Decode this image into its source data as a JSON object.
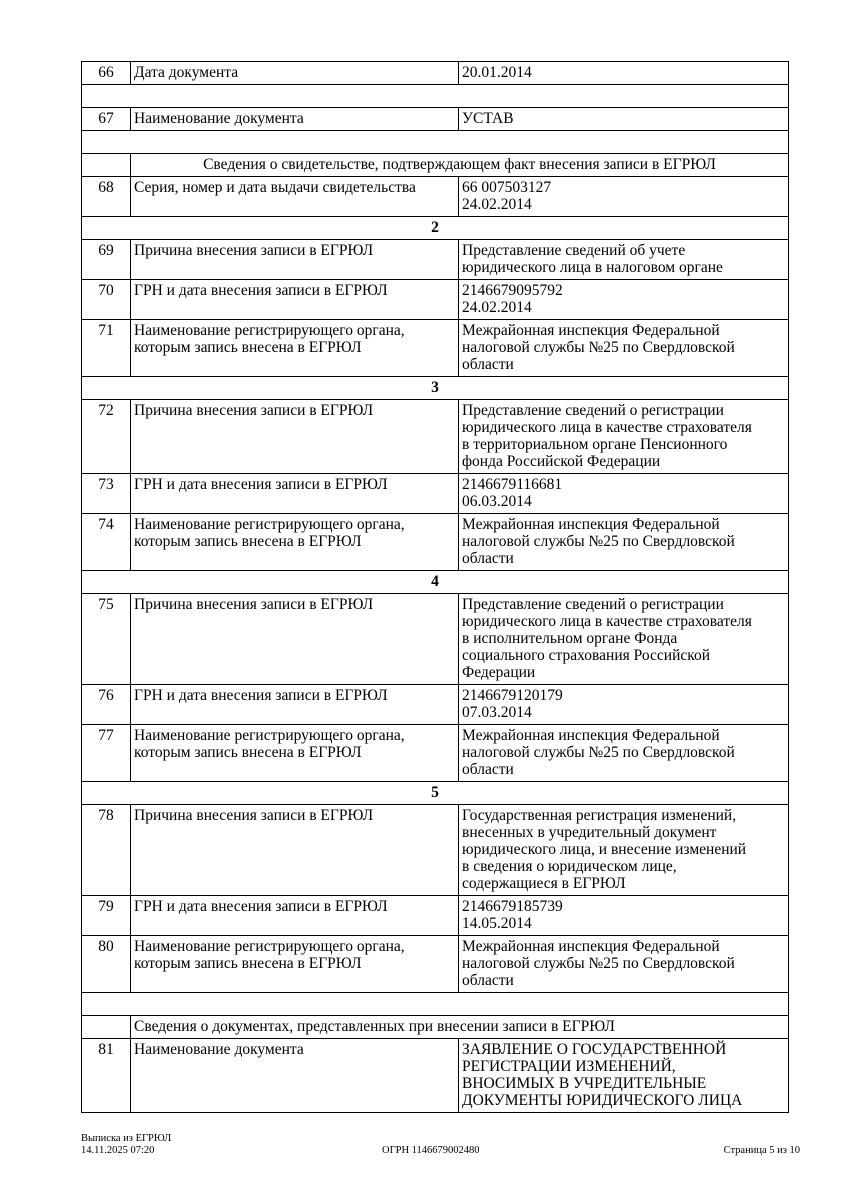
{
  "rows": [
    {
      "type": "item",
      "num": "66",
      "label": "Дата документа",
      "value": "20.01.2014"
    },
    {
      "type": "empty"
    },
    {
      "type": "item",
      "num": "67",
      "label": "Наименование документа",
      "value": "УСТАВ"
    },
    {
      "type": "empty"
    },
    {
      "type": "section",
      "centered": true,
      "title": "Сведения о свидетельстве, подтверждающем факт внесения записи в ЕГРЮЛ"
    },
    {
      "type": "item",
      "num": "68",
      "label": "Серия, номер и дата выдачи свидетельства",
      "value": "66 007503127\n24.02.2014"
    },
    {
      "type": "group",
      "title": "2"
    },
    {
      "type": "item",
      "num": "69",
      "label": "Причина внесения записи в ЕГРЮЛ",
      "value": "Представление сведений об учете\nюридического лица в налоговом органе"
    },
    {
      "type": "item",
      "num": "70",
      "label": "ГРН и дата внесения записи в ЕГРЮЛ",
      "value": "2146679095792\n24.02.2014"
    },
    {
      "type": "item",
      "num": "71",
      "label": "Наименование регистрирующего органа,\nкоторым запись внесена в ЕГРЮЛ",
      "value": "Межрайонная инспекция Федеральной\nналоговой службы №25 по Свердловской\nобласти"
    },
    {
      "type": "group",
      "title": "3"
    },
    {
      "type": "item",
      "num": "72",
      "label": "Причина внесения записи в ЕГРЮЛ",
      "value": "Представление сведений о регистрации\nюридического лица в качестве страхователя\nв территориальном органе Пенсионного\nфонда Российской Федерации"
    },
    {
      "type": "item",
      "num": "73",
      "label": "ГРН и дата внесения записи в ЕГРЮЛ",
      "value": "2146679116681\n06.03.2014"
    },
    {
      "type": "item",
      "num": "74",
      "label": "Наименование регистрирующего органа,\nкоторым запись внесена в ЕГРЮЛ",
      "value": "Межрайонная инспекция Федеральной\nналоговой службы №25 по Свердловской\nобласти"
    },
    {
      "type": "group",
      "title": "4"
    },
    {
      "type": "item",
      "num": "75",
      "label": "Причина внесения записи в ЕГРЮЛ",
      "value": "Представление сведений о регистрации\nюридического лица в качестве страхователя\nв исполнительном органе Фонда\nсоциального страхования Российской\nФедерации"
    },
    {
      "type": "item",
      "num": "76",
      "label": "ГРН и дата внесения записи в ЕГРЮЛ",
      "value": "2146679120179\n07.03.2014"
    },
    {
      "type": "item",
      "num": "77",
      "label": "Наименование регистрирующего органа,\nкоторым запись внесена в ЕГРЮЛ",
      "value": "Межрайонная инспекция Федеральной\nналоговой службы №25 по Свердловской\nобласти"
    },
    {
      "type": "group",
      "title": "5"
    },
    {
      "type": "item",
      "num": "78",
      "label": "Причина внесения записи в ЕГРЮЛ",
      "value": "Государственная регистрация изменений,\nвнесенных в учредительный документ\nюридического лица, и внесение изменений\nв сведения о юридическом лице,\nсодержащиеся в ЕГРЮЛ"
    },
    {
      "type": "item",
      "num": "79",
      "label": "ГРН и дата внесения записи в ЕГРЮЛ",
      "value": "2146679185739\n14.05.2014"
    },
    {
      "type": "item",
      "num": "80",
      "label": "Наименование регистрирующего органа,\nкоторым запись внесена в ЕГРЮЛ",
      "value": "Межрайонная инспекция Федеральной\nналоговой службы №25 по Свердловской\nобласти"
    },
    {
      "type": "empty"
    },
    {
      "type": "section",
      "centered": false,
      "title": "Сведения о документах, представленных при внесении записи в ЕГРЮЛ"
    },
    {
      "type": "item",
      "num": "81",
      "label": "Наименование документа",
      "value": "ЗАЯВЛЕНИЕ О ГОСУДАРСТВЕННОЙ\nРЕГИСТРАЦИИ ИЗМЕНЕНИЙ,\nВНОСИМЫХ В УЧРЕДИТЕЛЬНЫЕ\nДОКУМЕНТЫ  ЮРИДИЧЕСКОГО ЛИЦА"
    }
  ],
  "footer": {
    "doc_name": "Выписка из ЕГРЮЛ",
    "datetime": "14.11.2025 07:20",
    "ogrn": "ОГРН 1146679002480",
    "page": "Страница 5 из 10"
  }
}
